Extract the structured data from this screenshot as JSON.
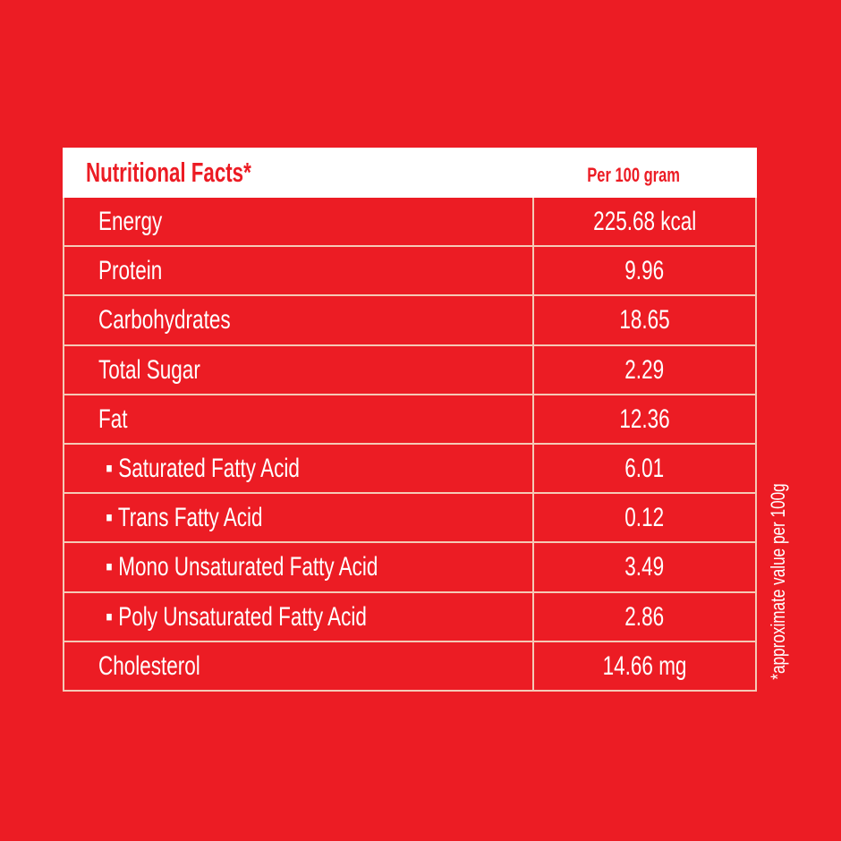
{
  "header": {
    "title": "Nutritional Facts*",
    "column": "Per 100 gram"
  },
  "rows": [
    {
      "label": "Energy",
      "value": "225.68 kcal"
    },
    {
      "label": "Protein",
      "value": "9.96"
    },
    {
      "label": "Carbohydrates",
      "value": "18.65"
    },
    {
      "label": "Total Sugar",
      "value": "2.29"
    },
    {
      "label": "Fat",
      "value": "12.36"
    },
    {
      "label": "▪ Saturated Fatty Acid",
      "value": "6.01"
    },
    {
      "label": "▪ Trans Fatty Acid",
      "value": "0.12"
    },
    {
      "label": "▪ Mono Unsaturated Fatty Acid",
      "value": "3.49"
    },
    {
      "label": "▪ Poly Unsaturated Fatty Acid",
      "value": "2.86"
    },
    {
      "label": "Cholesterol",
      "value": "14.66 mg"
    }
  ],
  "footnote": "*approximate value per 100g",
  "colors": {
    "background": "#ec1c24",
    "header": "#ffffff",
    "lines": "#f5c9b6"
  }
}
